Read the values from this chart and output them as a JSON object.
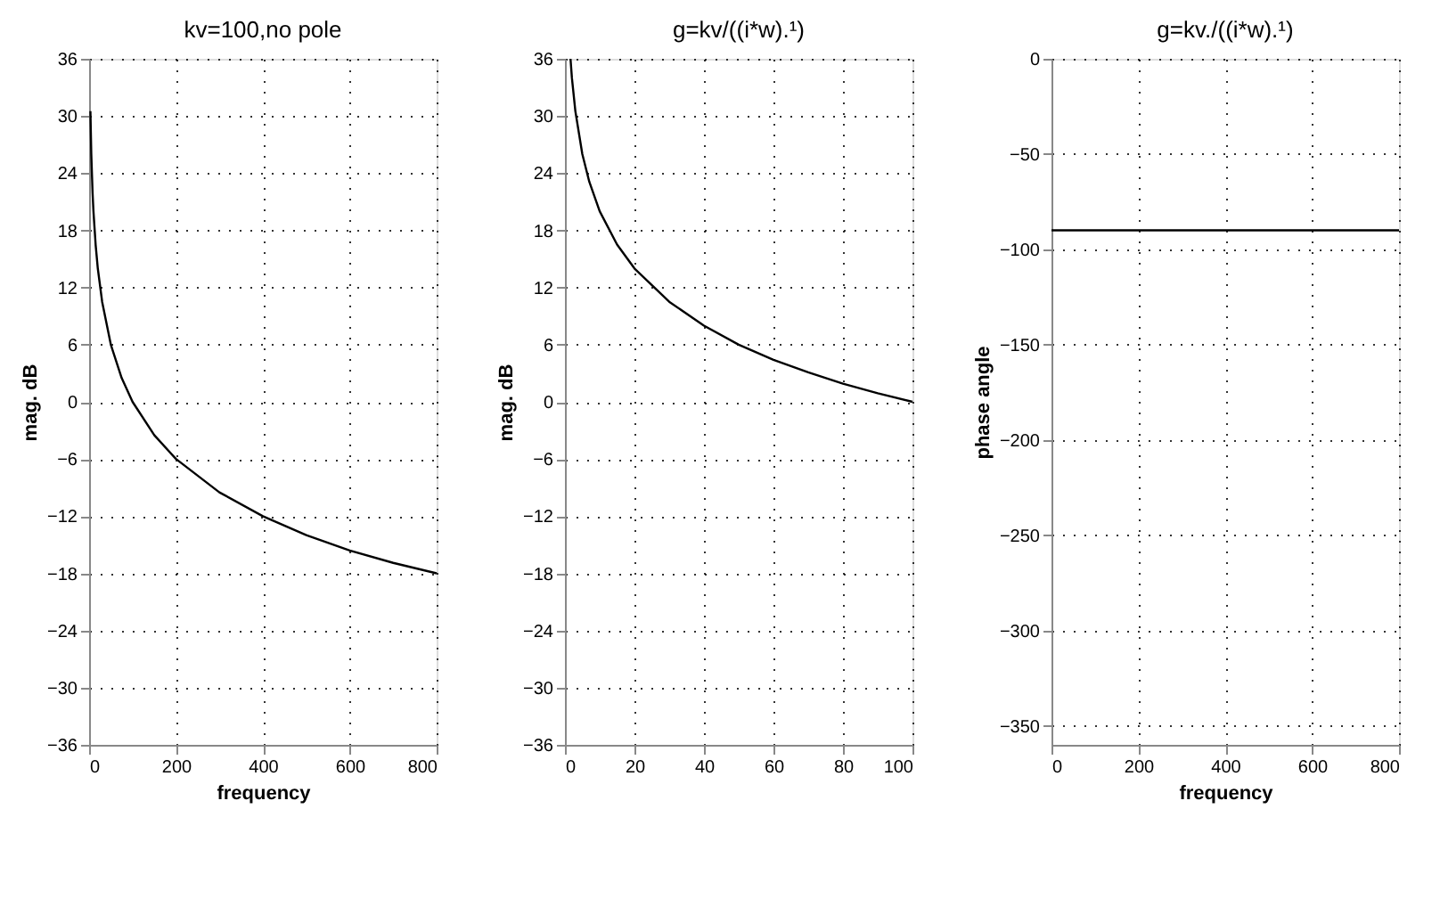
{
  "chart_data": [
    {
      "type": "line",
      "title": "kv=100,no pole",
      "xlabel": "frequency",
      "ylabel": "mag. dB",
      "xlim": [
        0,
        800
      ],
      "ylim": [
        -36,
        36
      ],
      "xticks": [
        0,
        200,
        400,
        600,
        800
      ],
      "yticks": [
        -36,
        -30,
        -24,
        -18,
        -12,
        -6,
        0,
        6,
        12,
        18,
        24,
        30,
        36
      ],
      "grid": true,
      "series": [
        {
          "color": "#000000",
          "x": [
            3,
            5,
            8,
            10,
            15,
            20,
            30,
            50,
            75,
            100,
            150,
            200,
            300,
            400,
            500,
            600,
            700,
            800
          ],
          "values": [
            30.5,
            26,
            21.9,
            20,
            16.5,
            14,
            10.5,
            6,
            2.5,
            0,
            -3.5,
            -6,
            -9.5,
            -12,
            -14,
            -15.6,
            -16.9,
            -18
          ]
        }
      ]
    },
    {
      "type": "line",
      "title": "g=kv/((i*w).¹)",
      "ylabel": "mag. dB",
      "xlim": [
        0,
        100
      ],
      "ylim": [
        -36,
        36
      ],
      "xticks": [
        0,
        20,
        40,
        60,
        80,
        100
      ],
      "yticks": [
        -36,
        -30,
        -24,
        -18,
        -12,
        -6,
        0,
        6,
        12,
        18,
        24,
        30,
        36
      ],
      "grid": true,
      "series": [
        {
          "color": "#000000",
          "x": [
            1.6,
            2,
            3,
            5,
            7,
            10,
            15,
            20,
            30,
            40,
            50,
            60,
            70,
            80,
            90,
            100
          ],
          "values": [
            36,
            34,
            30.5,
            26,
            23.1,
            20,
            16.5,
            14,
            10.5,
            8,
            6,
            4.4,
            3.1,
            1.9,
            0.9,
            0
          ]
        }
      ]
    },
    {
      "type": "line",
      "title": "g=kv./((i*w).¹)",
      "xlabel": "frequency",
      "ylabel": "phase angle",
      "xlim": [
        0,
        800
      ],
      "ylim": [
        -360,
        0
      ],
      "xticks": [
        0,
        200,
        400,
        600,
        800
      ],
      "yticks": [
        -350,
        -300,
        -250,
        -200,
        -150,
        -100,
        -50,
        0
      ],
      "grid": true,
      "series": [
        {
          "color": "#000000",
          "x": [
            0,
            800
          ],
          "values": [
            -90,
            -90
          ]
        }
      ]
    }
  ]
}
